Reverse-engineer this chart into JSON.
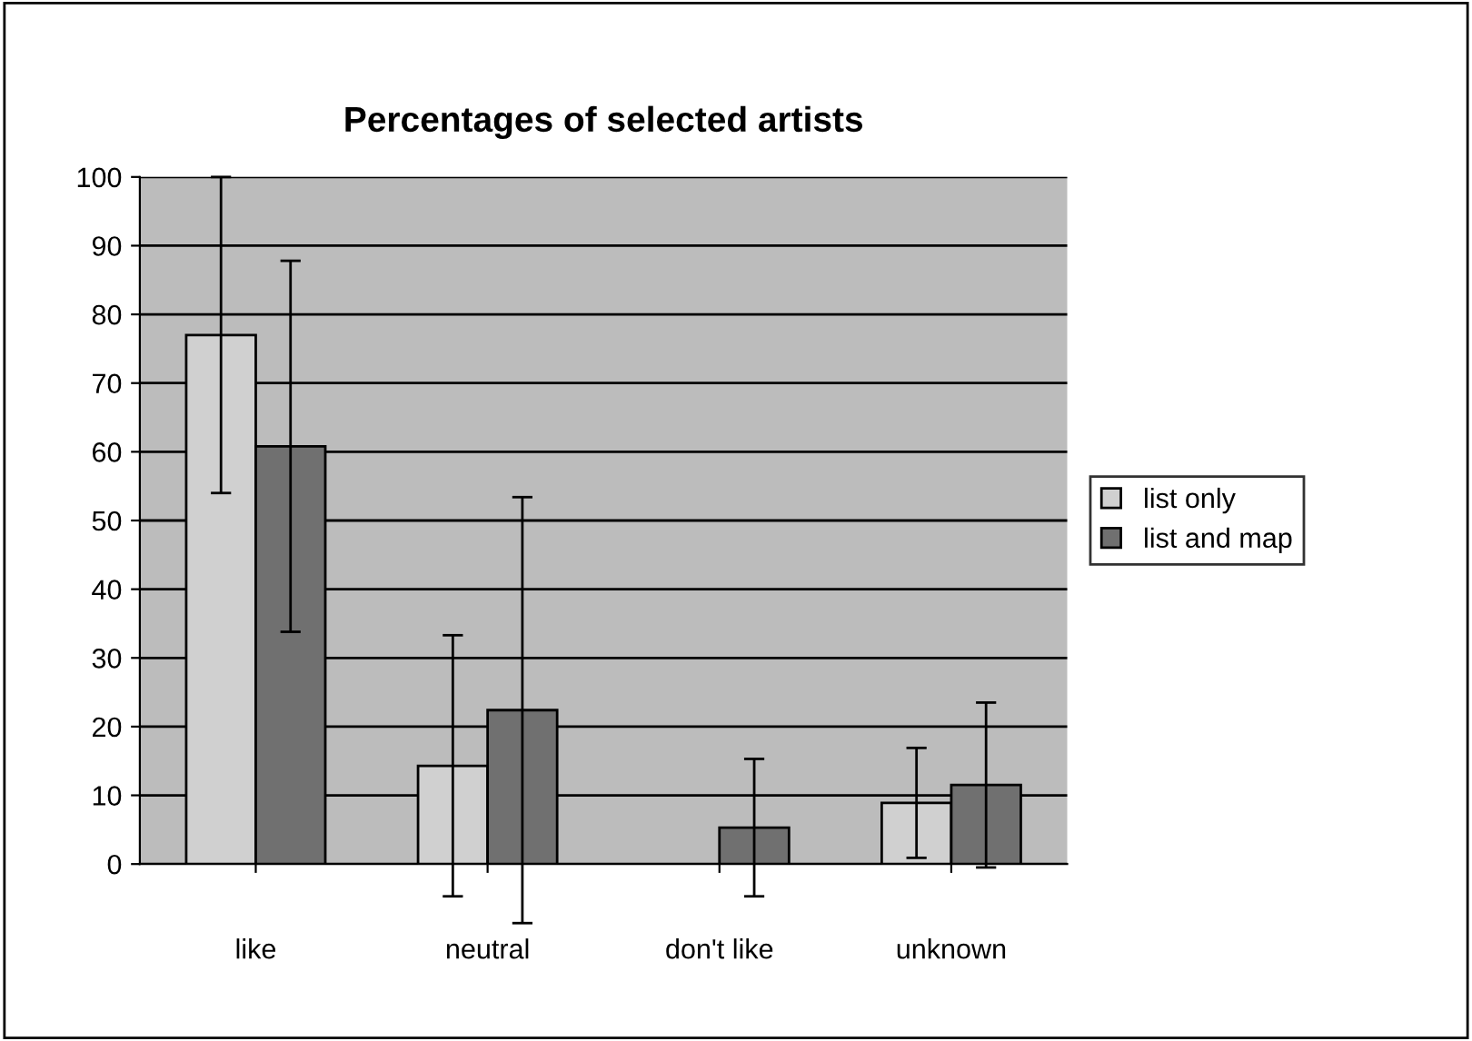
{
  "chart_data": {
    "type": "bar",
    "title": "Percentages of selected artists",
    "categories": [
      "like",
      "neutral",
      "don't like",
      "unknown"
    ],
    "series": [
      {
        "name": "list only",
        "color": "#d0d0d0",
        "values": [
          77,
          14.3,
          0,
          8.9
        ],
        "errors": [
          23,
          19,
          null,
          8
        ]
      },
      {
        "name": "list and map",
        "color": "#707070",
        "values": [
          60.8,
          22.4,
          5.3,
          11.5
        ],
        "errors": [
          27,
          31,
          10,
          12
        ]
      }
    ],
    "ylim": [
      0,
      100
    ],
    "yticks": [
      0,
      10,
      20,
      30,
      40,
      50,
      60,
      70,
      80,
      90,
      100
    ],
    "grid": "y",
    "legend": "right"
  }
}
